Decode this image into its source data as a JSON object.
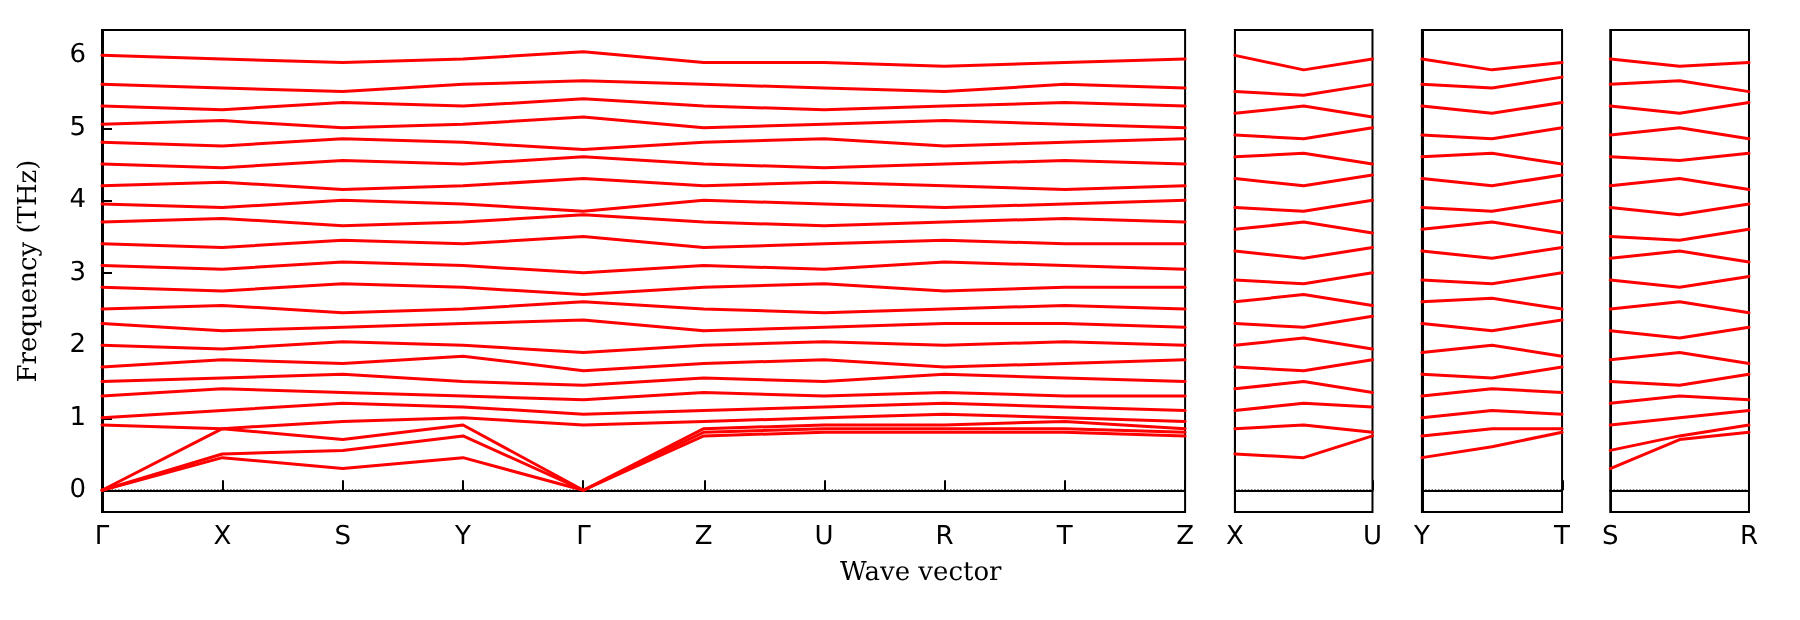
{
  "chart_data": [
    {
      "type": "line",
      "ylabel": "Frequency (THz)",
      "xlabel": "Wave vector",
      "color": "#ff0000",
      "marker": "none",
      "line_style": "solid",
      "categories": [
        "Γ",
        "X",
        "S",
        "Y",
        "Γ",
        "Z",
        "U",
        "R",
        "T",
        "Z"
      ],
      "ylim": [
        -0.3,
        6.35
      ],
      "yticks": [
        0,
        1,
        2,
        3,
        4,
        5,
        6
      ],
      "ref_lines": [
        {
          "axis": "y",
          "value": 0,
          "color": "#000000",
          "line_style": "dotted"
        }
      ],
      "series": [
        {
          "values": [
            0,
            0.45,
            0.3,
            0.45,
            0,
            0.75,
            0.8,
            0.8,
            0.8,
            0.75
          ]
        },
        {
          "values": [
            0,
            0.5,
            0.55,
            0.75,
            0,
            0.8,
            0.85,
            0.85,
            0.85,
            0.8
          ]
        },
        {
          "values": [
            0,
            0.85,
            0.7,
            0.9,
            0,
            0.85,
            0.9,
            0.9,
            0.95,
            0.85
          ]
        },
        {
          "values": [
            0.9,
            0.85,
            0.95,
            1.0,
            0.9,
            0.95,
            1.0,
            1.05,
            1.0,
            0.95
          ]
        },
        {
          "values": [
            1.0,
            1.1,
            1.2,
            1.15,
            1.05,
            1.1,
            1.15,
            1.2,
            1.15,
            1.1
          ]
        },
        {
          "values": [
            1.3,
            1.4,
            1.35,
            1.3,
            1.25,
            1.35,
            1.3,
            1.35,
            1.3,
            1.3
          ]
        },
        {
          "values": [
            1.5,
            1.55,
            1.6,
            1.5,
            1.45,
            1.55,
            1.5,
            1.6,
            1.55,
            1.5
          ]
        },
        {
          "values": [
            1.7,
            1.8,
            1.75,
            1.85,
            1.65,
            1.75,
            1.8,
            1.7,
            1.75,
            1.8
          ]
        },
        {
          "values": [
            2.0,
            1.95,
            2.05,
            2.0,
            1.9,
            2.0,
            2.05,
            2.0,
            2.05,
            2.0
          ]
        },
        {
          "values": [
            2.3,
            2.2,
            2.25,
            2.3,
            2.35,
            2.2,
            2.25,
            2.3,
            2.3,
            2.25
          ]
        },
        {
          "values": [
            2.5,
            2.55,
            2.45,
            2.5,
            2.6,
            2.5,
            2.45,
            2.5,
            2.55,
            2.5
          ]
        },
        {
          "values": [
            2.8,
            2.75,
            2.85,
            2.8,
            2.7,
            2.8,
            2.85,
            2.75,
            2.8,
            2.8
          ]
        },
        {
          "values": [
            3.1,
            3.05,
            3.15,
            3.1,
            3.0,
            3.1,
            3.05,
            3.15,
            3.1,
            3.05
          ]
        },
        {
          "values": [
            3.4,
            3.35,
            3.45,
            3.4,
            3.5,
            3.35,
            3.4,
            3.45,
            3.4,
            3.4
          ]
        },
        {
          "values": [
            3.7,
            3.75,
            3.65,
            3.7,
            3.8,
            3.7,
            3.65,
            3.7,
            3.75,
            3.7
          ]
        },
        {
          "values": [
            3.95,
            3.9,
            4.0,
            3.95,
            3.85,
            4.0,
            3.95,
            3.9,
            3.95,
            4.0
          ]
        },
        {
          "values": [
            4.2,
            4.25,
            4.15,
            4.2,
            4.3,
            4.2,
            4.25,
            4.2,
            4.15,
            4.2
          ]
        },
        {
          "values": [
            4.5,
            4.45,
            4.55,
            4.5,
            4.6,
            4.5,
            4.45,
            4.5,
            4.55,
            4.5
          ]
        },
        {
          "values": [
            4.8,
            4.75,
            4.85,
            4.8,
            4.7,
            4.8,
            4.85,
            4.75,
            4.8,
            4.85
          ]
        },
        {
          "values": [
            5.05,
            5.1,
            5.0,
            5.05,
            5.15,
            5.0,
            5.05,
            5.1,
            5.05,
            5.0
          ]
        },
        {
          "values": [
            5.3,
            5.25,
            5.35,
            5.3,
            5.4,
            5.3,
            5.25,
            5.3,
            5.35,
            5.3
          ]
        },
        {
          "values": [
            5.6,
            5.55,
            5.5,
            5.6,
            5.65,
            5.6,
            5.55,
            5.5,
            5.6,
            5.55
          ]
        },
        {
          "values": [
            6.0,
            5.95,
            5.9,
            5.95,
            6.05,
            5.9,
            5.9,
            5.85,
            5.9,
            5.95
          ]
        }
      ]
    },
    {
      "type": "line",
      "color": "#ff0000",
      "marker": "none",
      "line_style": "solid",
      "tick_labels": "x",
      "categories": [
        "X",
        null,
        "U"
      ],
      "ylim": [
        -0.3,
        6.35
      ],
      "ref_lines": [
        {
          "axis": "y",
          "value": 0,
          "color": "#000000",
          "line_style": "dotted"
        }
      ],
      "series": [
        {
          "values": [
            0.5,
            0.45,
            0.75
          ]
        },
        {
          "values": [
            0.85,
            0.9,
            0.8
          ]
        },
        {
          "values": [
            1.1,
            1.2,
            1.15
          ]
        },
        {
          "values": [
            1.4,
            1.5,
            1.35
          ]
        },
        {
          "values": [
            1.7,
            1.65,
            1.8
          ]
        },
        {
          "values": [
            2.0,
            2.1,
            1.95
          ]
        },
        {
          "values": [
            2.3,
            2.25,
            2.4
          ]
        },
        {
          "values": [
            2.6,
            2.7,
            2.55
          ]
        },
        {
          "values": [
            2.9,
            2.85,
            3.0
          ]
        },
        {
          "values": [
            3.3,
            3.2,
            3.35
          ]
        },
        {
          "values": [
            3.6,
            3.7,
            3.55
          ]
        },
        {
          "values": [
            3.9,
            3.85,
            4.0
          ]
        },
        {
          "values": [
            4.3,
            4.2,
            4.35
          ]
        },
        {
          "values": [
            4.6,
            4.65,
            4.5
          ]
        },
        {
          "values": [
            4.9,
            4.85,
            5.0
          ]
        },
        {
          "values": [
            5.2,
            5.3,
            5.15
          ]
        },
        {
          "values": [
            5.5,
            5.45,
            5.6
          ]
        },
        {
          "values": [
            6.0,
            5.8,
            5.95
          ]
        }
      ]
    },
    {
      "type": "line",
      "color": "#ff0000",
      "marker": "none",
      "line_style": "solid",
      "tick_labels": "x",
      "categories": [
        "Y",
        null,
        "T"
      ],
      "ylim": [
        -0.3,
        6.35
      ],
      "ref_lines": [
        {
          "axis": "y",
          "value": 0,
          "color": "#000000",
          "line_style": "dotted"
        }
      ],
      "series": [
        {
          "values": [
            0.45,
            0.6,
            0.8
          ]
        },
        {
          "values": [
            0.75,
            0.85,
            0.85
          ]
        },
        {
          "values": [
            1.0,
            1.1,
            1.05
          ]
        },
        {
          "values": [
            1.3,
            1.4,
            1.35
          ]
        },
        {
          "values": [
            1.6,
            1.55,
            1.7
          ]
        },
        {
          "values": [
            1.9,
            2.0,
            1.85
          ]
        },
        {
          "values": [
            2.3,
            2.2,
            2.35
          ]
        },
        {
          "values": [
            2.6,
            2.65,
            2.5
          ]
        },
        {
          "values": [
            2.9,
            2.85,
            3.0
          ]
        },
        {
          "values": [
            3.3,
            3.2,
            3.35
          ]
        },
        {
          "values": [
            3.6,
            3.7,
            3.55
          ]
        },
        {
          "values": [
            3.9,
            3.85,
            4.0
          ]
        },
        {
          "values": [
            4.3,
            4.2,
            4.35
          ]
        },
        {
          "values": [
            4.6,
            4.65,
            4.5
          ]
        },
        {
          "values": [
            4.9,
            4.85,
            5.0
          ]
        },
        {
          "values": [
            5.3,
            5.2,
            5.35
          ]
        },
        {
          "values": [
            5.6,
            5.55,
            5.7
          ]
        },
        {
          "values": [
            5.95,
            5.8,
            5.9
          ]
        }
      ]
    },
    {
      "type": "line",
      "color": "#ff0000",
      "marker": "none",
      "line_style": "solid",
      "tick_labels": "x",
      "categories": [
        "S",
        null,
        "R"
      ],
      "ylim": [
        -0.3,
        6.35
      ],
      "ref_lines": [
        {
          "axis": "y",
          "value": 0,
          "color": "#000000",
          "line_style": "dotted"
        }
      ],
      "series": [
        {
          "values": [
            0.3,
            0.7,
            0.8
          ]
        },
        {
          "values": [
            0.55,
            0.75,
            0.9
          ]
        },
        {
          "values": [
            0.9,
            1.0,
            1.1
          ]
        },
        {
          "values": [
            1.2,
            1.3,
            1.25
          ]
        },
        {
          "values": [
            1.5,
            1.45,
            1.6
          ]
        },
        {
          "values": [
            1.8,
            1.9,
            1.75
          ]
        },
        {
          "values": [
            2.2,
            2.1,
            2.25
          ]
        },
        {
          "values": [
            2.5,
            2.6,
            2.45
          ]
        },
        {
          "values": [
            2.9,
            2.8,
            2.95
          ]
        },
        {
          "values": [
            3.2,
            3.3,
            3.15
          ]
        },
        {
          "values": [
            3.5,
            3.45,
            3.6
          ]
        },
        {
          "values": [
            3.9,
            3.8,
            3.95
          ]
        },
        {
          "values": [
            4.2,
            4.3,
            4.15
          ]
        },
        {
          "values": [
            4.6,
            4.55,
            4.65
          ]
        },
        {
          "values": [
            4.9,
            5.0,
            4.85
          ]
        },
        {
          "values": [
            5.3,
            5.2,
            5.35
          ]
        },
        {
          "values": [
            5.6,
            5.65,
            5.5
          ]
        },
        {
          "values": [
            5.95,
            5.85,
            5.9
          ]
        }
      ]
    }
  ]
}
